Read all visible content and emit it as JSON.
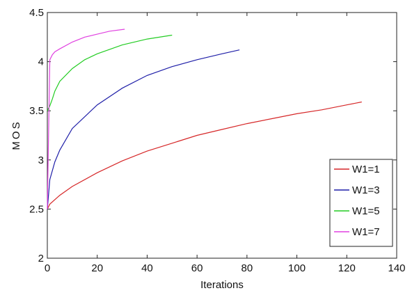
{
  "chart_data": {
    "type": "line",
    "title": "",
    "xlabel": "Iterations",
    "ylabel": "MOS",
    "xlim": [
      0,
      140
    ],
    "ylim": [
      2,
      4.5
    ],
    "xticks": [
      "0",
      "20",
      "40",
      "60",
      "80",
      "100",
      "120",
      "140"
    ],
    "yticks": [
      "2",
      "2.5",
      "3",
      "3.5",
      "4",
      "4.5"
    ],
    "grid": false,
    "legend_position": "bottom-right",
    "series": [
      {
        "name": "W1=1",
        "color": "#d62728",
        "x": [
          0,
          1,
          5,
          10,
          20,
          30,
          40,
          50,
          60,
          70,
          80,
          90,
          100,
          110,
          120,
          126
        ],
        "y": [
          2.5,
          2.55,
          2.64,
          2.73,
          2.87,
          2.99,
          3.09,
          3.17,
          3.25,
          3.31,
          3.37,
          3.42,
          3.47,
          3.51,
          3.56,
          3.59
        ]
      },
      {
        "name": "W1=3",
        "color": "#1f1fa8",
        "x": [
          0,
          1,
          3,
          5,
          10,
          20,
          30,
          40,
          50,
          60,
          70,
          77
        ],
        "y": [
          2.5,
          2.8,
          2.98,
          3.1,
          3.32,
          3.56,
          3.73,
          3.86,
          3.95,
          4.02,
          4.08,
          4.12
        ]
      },
      {
        "name": "W1=5",
        "color": "#22cc22",
        "x": [
          0,
          1,
          2,
          3,
          5,
          10,
          15,
          20,
          30,
          40,
          50
        ],
        "y": [
          3.5,
          3.55,
          3.62,
          3.7,
          3.8,
          3.93,
          4.02,
          4.08,
          4.17,
          4.23,
          4.27
        ]
      },
      {
        "name": "W1=7",
        "color": "#e040e0",
        "x": [
          0,
          1,
          2,
          3,
          5,
          10,
          15,
          20,
          25,
          31
        ],
        "y": [
          2.5,
          4.02,
          4.07,
          4.1,
          4.13,
          4.2,
          4.25,
          4.28,
          4.31,
          4.33
        ]
      }
    ]
  }
}
